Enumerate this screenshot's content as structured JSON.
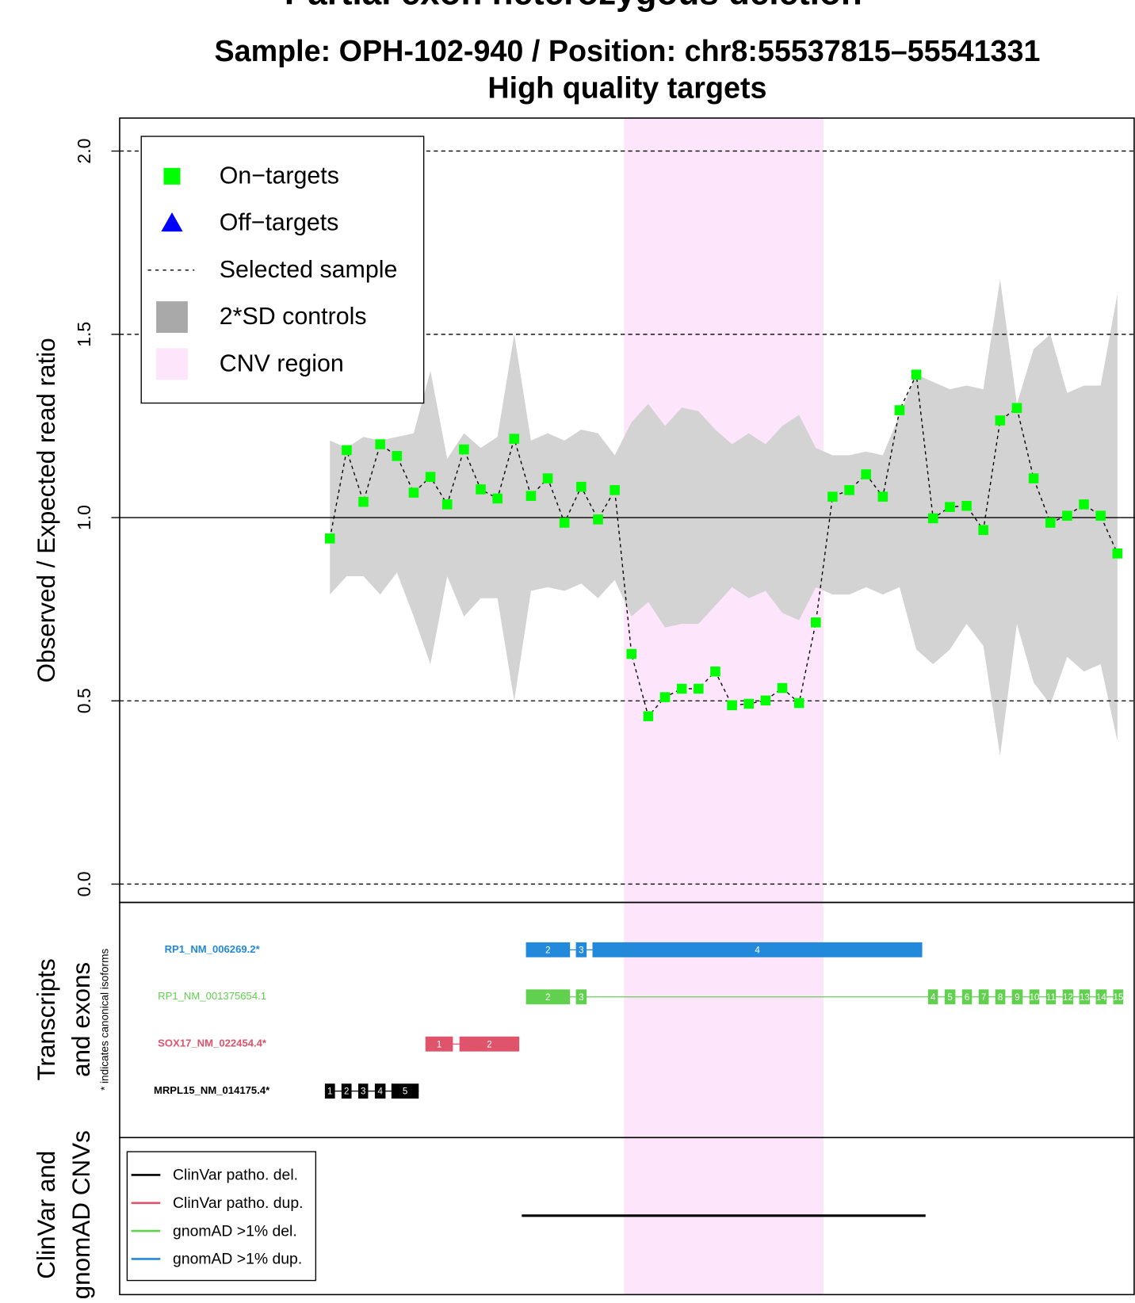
{
  "chart_data": {
    "type": "cnv",
    "title": "Partial exon heterozygous deletion",
    "subtitle": [
      "Sample: OPH-102-940  /  Position: chr8:55537815–55541331",
      "High quality targets"
    ],
    "y_label": "Observed / Expected read ratio",
    "xlim": [
      -11.55,
      49.05
    ],
    "ylim": [
      -0.05,
      2.09
    ],
    "yticks": [
      {
        "value": 0,
        "label": "0.0"
      },
      {
        "value": 0.5,
        "label": "0.5"
      },
      {
        "value": 1,
        "label": "1.0"
      },
      {
        "value": 1.5,
        "label": "1.5"
      },
      {
        "value": 2,
        "label": "2.0"
      }
    ],
    "reference_line": 1,
    "x": [
      1,
      2,
      3,
      4,
      5,
      6,
      7,
      8,
      9,
      10,
      11,
      12,
      13,
      14,
      15,
      16,
      17,
      18,
      19,
      20,
      21,
      22,
      23,
      24,
      25,
      26,
      27,
      28,
      29,
      30,
      31,
      32,
      33,
      34,
      35,
      36,
      37,
      38,
      39,
      40,
      41,
      42,
      43,
      44,
      45,
      46,
      47,
      48
    ],
    "values": [
      0.943,
      1.184,
      1.043,
      1.2,
      1.168,
      1.068,
      1.111,
      1.036,
      1.186,
      1.077,
      1.052,
      1.215,
      1.059,
      1.107,
      0.986,
      1.084,
      0.995,
      1.075,
      0.628,
      0.458,
      0.51,
      0.533,
      0.533,
      0.58,
      0.488,
      0.492,
      0.501,
      0.535,
      0.494,
      0.714,
      1.057,
      1.075,
      1.118,
      1.057,
      1.293,
      1.39,
      0.998,
      1.029,
      1.032,
      0.966,
      1.265,
      1.299,
      1.107,
      0.986,
      1.005,
      1.036,
      1.005,
      0.902
    ],
    "color": "#00ff00",
    "sd_upper": [
      1.21,
      1.19,
      1.22,
      1.21,
      1.22,
      1.23,
      1.4,
      1.16,
      1.23,
      1.19,
      1.22,
      1.5,
      1.21,
      1.23,
      1.21,
      1.24,
      1.23,
      1.17,
      1.26,
      1.31,
      1.25,
      1.3,
      1.29,
      1.24,
      1.2,
      1.23,
      1.2,
      1.25,
      1.28,
      1.19,
      1.17,
      1.17,
      1.18,
      1.17,
      1.28,
      1.39,
      1.37,
      1.35,
      1.36,
      1.35,
      1.65,
      1.31,
      1.46,
      1.5,
      1.34,
      1.36,
      1.36,
      1.61
    ],
    "sd_lower": [
      0.79,
      0.84,
      0.84,
      0.79,
      0.85,
      0.73,
      0.6,
      0.84,
      0.73,
      0.78,
      0.78,
      0.5,
      0.8,
      0.81,
      0.8,
      0.82,
      0.78,
      0.83,
      0.73,
      0.77,
      0.7,
      0.71,
      0.71,
      0.76,
      0.81,
      0.78,
      0.8,
      0.74,
      0.72,
      0.81,
      0.79,
      0.79,
      0.81,
      0.79,
      0.81,
      0.64,
      0.6,
      0.64,
      0.71,
      0.65,
      0.35,
      0.71,
      0.55,
      0.49,
      0.62,
      0.58,
      0.6,
      0.39
    ],
    "sd_color": "#d3d3d3",
    "cnv_region": [
      18.55,
      30.45
    ],
    "cnv_color": "#fde5fb",
    "legend": {
      "position": "top-left",
      "entries": [
        {
          "label": "On−targets",
          "symbol": "square",
          "color": "#00ff00"
        },
        {
          "label": "Off−targets",
          "symbol": "triangle",
          "color": "#0000ff"
        },
        {
          "label": "Selected sample",
          "symbol": "dashed",
          "color": "#000000"
        },
        {
          "label": "2*SD controls",
          "symbol": "box",
          "color": "#a9a9a9"
        },
        {
          "label": "CNV region",
          "symbol": "box",
          "color": "#fde5fb"
        }
      ]
    },
    "transcript_panel": {
      "labels": [
        "Transcripts",
        "and exons"
      ],
      "note": "* indicates canonical isoforms",
      "tracks": [
        {
          "name": "RP1_NM_006269.2*",
          "color": "#2389da",
          "exons": [
            {
              "label": "2",
              "start": 12.7,
              "end": 15.33
            },
            {
              "label": "3",
              "start": 15.68,
              "end": 16.32
            },
            {
              "label": "4",
              "start": 16.67,
              "end": 36.35
            }
          ]
        },
        {
          "name": "RP1_NM_001375654.1",
          "color": "#61d04f",
          "exons": [
            {
              "label": "2",
              "start": 12.7,
              "end": 15.33
            },
            {
              "label": "3",
              "start": 15.68,
              "end": 16.32
            },
            {
              "label": "4",
              "start": 36.7,
              "end": 37.29
            },
            {
              "label": "5",
              "start": 37.69,
              "end": 38.33
            },
            {
              "label": "6",
              "start": 38.73,
              "end": 39.32
            },
            {
              "label": "7",
              "start": 39.72,
              "end": 40.32
            },
            {
              "label": "8",
              "start": 40.71,
              "end": 41.31
            },
            {
              "label": "9",
              "start": 41.7,
              "end": 42.35
            },
            {
              "label": "10",
              "start": 42.75,
              "end": 43.34
            },
            {
              "label": "11",
              "start": 43.74,
              "end": 44.33
            },
            {
              "label": "12",
              "start": 44.73,
              "end": 45.37
            },
            {
              "label": "13",
              "start": 45.72,
              "end": 46.36
            },
            {
              "label": "14",
              "start": 46.71,
              "end": 47.36
            },
            {
              "label": "15",
              "start": 47.75,
              "end": 48.35
            }
          ]
        },
        {
          "name": "SOX17_NM_022454.4*",
          "color": "#df536b",
          "exons": [
            {
              "label": "1",
              "start": 6.7,
              "end": 8.34
            },
            {
              "label": "2",
              "start": 8.73,
              "end": 12.3
            }
          ]
        },
        {
          "name": "MRPL15_NM_014175.4*",
          "color": "#000000",
          "exons": [
            {
              "label": "1",
              "start": 0.7,
              "end": 1.3
            },
            {
              "label": "2",
              "start": 1.69,
              "end": 2.29
            },
            {
              "label": "3",
              "start": 2.69,
              "end": 3.28
            },
            {
              "label": "4",
              "start": 3.68,
              "end": 4.32
            },
            {
              "label": "5",
              "start": 4.67,
              "end": 6.3
            }
          ]
        }
      ]
    },
    "cnv_panel": {
      "labels": [
        "ClinVar and",
        "gnomAD CNVs"
      ],
      "legend": [
        {
          "label": "ClinVar patho. del.",
          "color": "#000000"
        },
        {
          "label": "ClinVar patho. dup.",
          "color": "#df536b"
        },
        {
          "label": "gnomAD >1% del.",
          "color": "#61d04f"
        },
        {
          "label": "gnomAD >1% dup.",
          "color": "#2389da"
        }
      ],
      "segments": [
        {
          "start": 12.45,
          "end": 36.55,
          "color": "#000000"
        }
      ]
    }
  }
}
